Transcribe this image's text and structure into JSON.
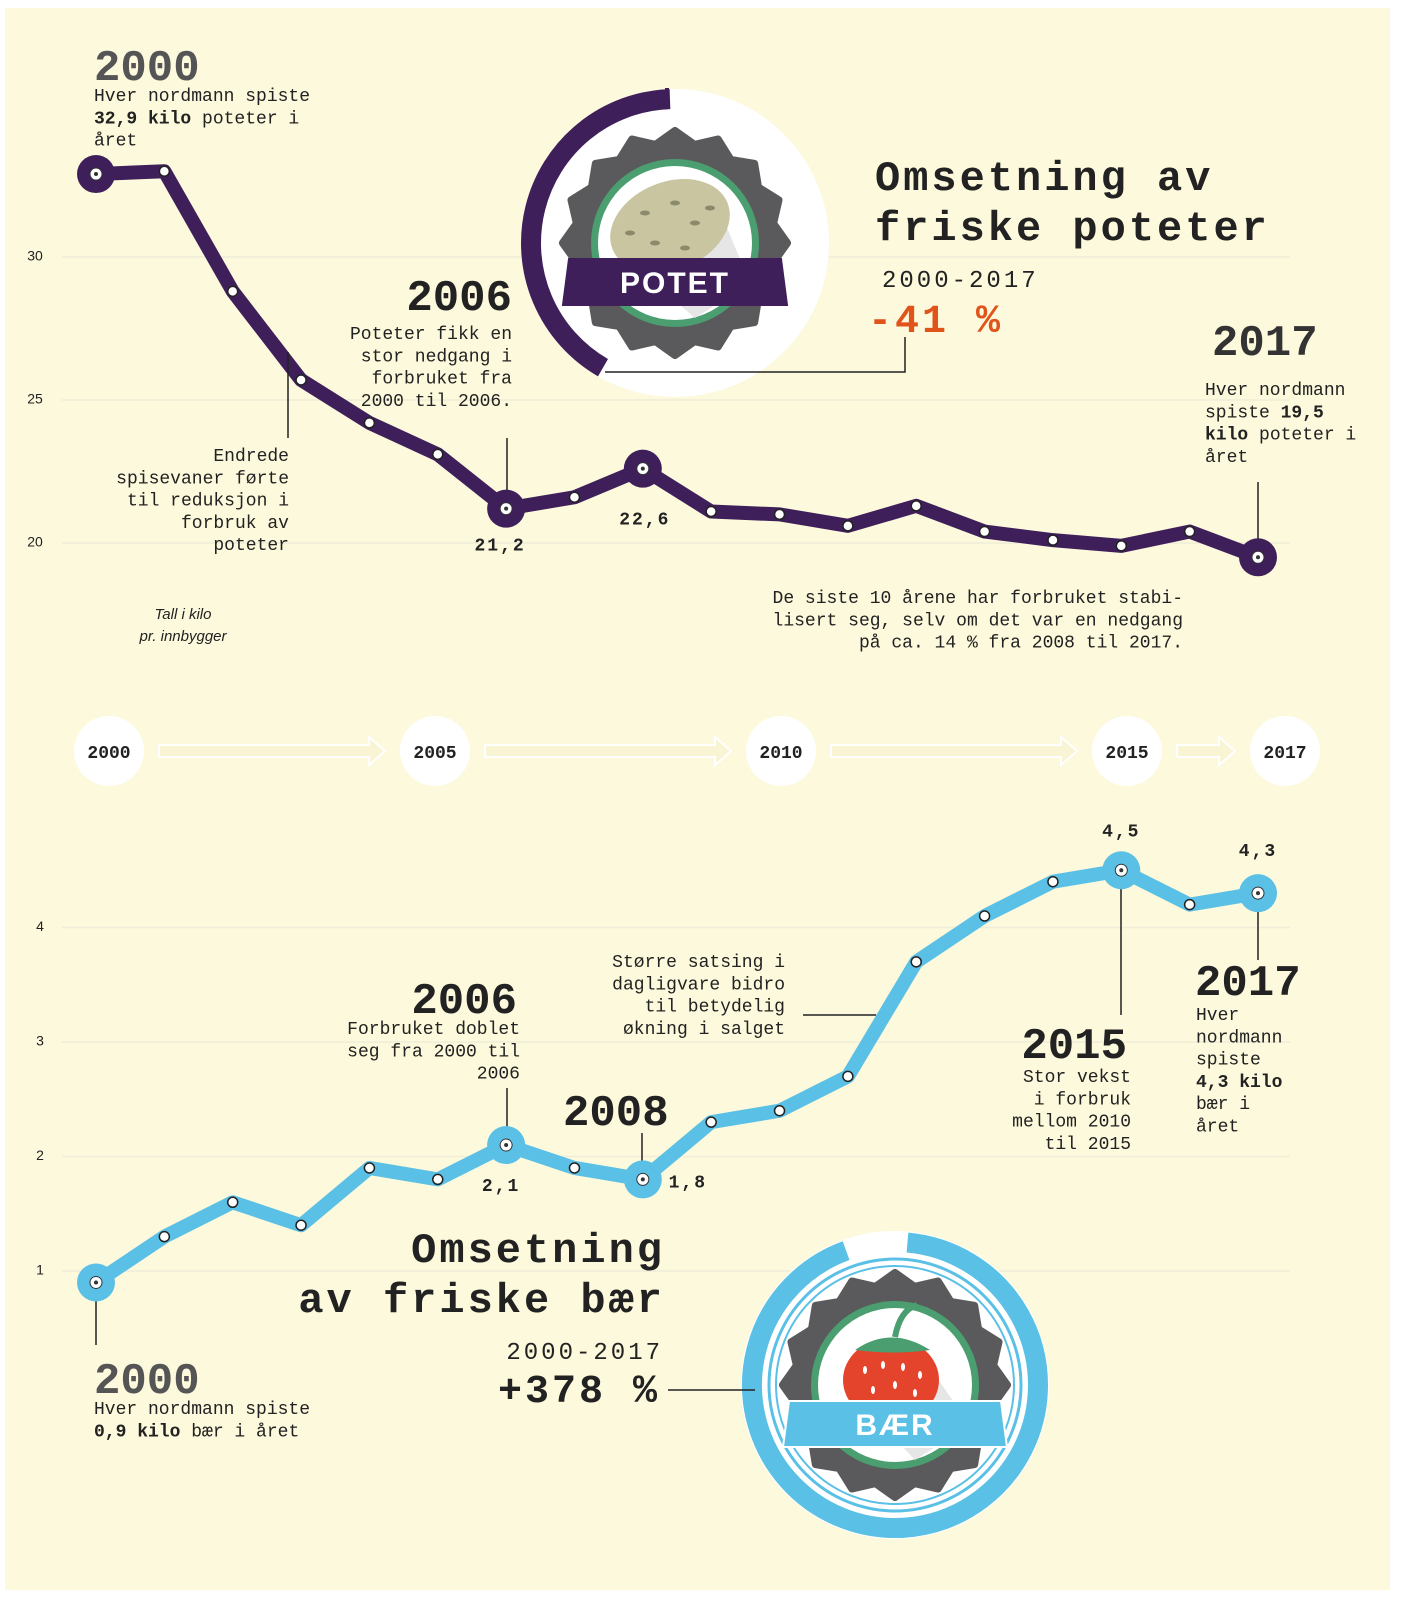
{
  "timeline": [
    2000,
    2005,
    2010,
    2015,
    2017
  ],
  "chart_data": [
    {
      "type": "line",
      "title": [
        "Omsetning av",
        "friske poteter"
      ],
      "period": "2000-2017",
      "change": "-41 %",
      "badge": "POTET",
      "unit_note": [
        "Tall i kilo",
        "pr. innbygger"
      ],
      "color": "#3f1f5a",
      "x": [
        2000,
        2001,
        2002,
        2003,
        2004,
        2005,
        2006,
        2007,
        2008,
        2009,
        2010,
        2011,
        2012,
        2013,
        2014,
        2015,
        2016,
        2017
      ],
      "values": [
        32.9,
        33.0,
        28.8,
        25.7,
        24.2,
        23.1,
        21.2,
        21.6,
        22.6,
        21.1,
        21.0,
        20.6,
        21.3,
        20.4,
        20.1,
        19.9,
        20.4,
        19.5
      ],
      "value_labels": [
        null,
        null,
        null,
        null,
        null,
        null,
        "21,2",
        null,
        "22,6",
        null,
        null,
        null,
        null,
        null,
        null,
        null,
        null,
        null
      ],
      "xlim": [
        2000,
        2017
      ],
      "ylim": [
        17,
        34
      ],
      "yticks": [
        20,
        25,
        30
      ],
      "grid": true,
      "annotations": [
        {
          "heading": "2000",
          "lines": [
            "Hver nordmann spiste",
            [
              {
                "b": "32,9 kilo"
              },
              " poteter i"
            ],
            "året"
          ]
        },
        {
          "heading": "2006",
          "lines": [
            "Poteter fikk en",
            "stor nedgang i",
            "forbruket fra",
            "2000 til 2006."
          ]
        },
        {
          "lines": [
            "Endrede",
            "spisevaner førte",
            "til reduksjon i",
            "forbruk av",
            "poteter"
          ]
        },
        {
          "heading": "2017",
          "lines": [
            "Hver nordmann",
            [
              "spiste ",
              {
                "b": "19,5"
              }
            ],
            [
              {
                "b": "kilo"
              },
              " poteter i"
            ],
            "året"
          ]
        },
        {
          "lines": [
            "De siste 10 årene har forbruket stabi-",
            "lisert seg, selv om det var en nedgang",
            "på ca. 14 % fra 2008 til 2017."
          ]
        }
      ]
    },
    {
      "type": "line",
      "title": [
        "Omsetning",
        "av friske bær"
      ],
      "period": "2000-2017",
      "change": "+378 %",
      "badge": "BÆR",
      "color": "#5bc0e6",
      "x": [
        2000,
        2001,
        2002,
        2003,
        2004,
        2005,
        2006,
        2007,
        2008,
        2009,
        2010,
        2011,
        2012,
        2013,
        2014,
        2015,
        2016,
        2017
      ],
      "values": [
        0.9,
        1.3,
        1.6,
        1.4,
        1.9,
        1.8,
        2.1,
        1.9,
        1.8,
        2.3,
        2.4,
        2.7,
        3.7,
        4.1,
        4.4,
        4.5,
        4.2,
        4.3
      ],
      "value_labels": [
        null,
        null,
        null,
        null,
        null,
        null,
        "2,1",
        null,
        "1,8",
        null,
        null,
        null,
        null,
        null,
        null,
        "4,5",
        null,
        "4,3"
      ],
      "xlim": [
        2000,
        2017
      ],
      "ylim": [
        0,
        5
      ],
      "yticks": [
        1,
        2,
        3,
        4
      ],
      "grid": true,
      "annotations": [
        {
          "heading": "2006",
          "lines": [
            "Forbruket doblet",
            "seg fra 2000 til",
            "2006"
          ]
        },
        {
          "heading": "2008",
          "lines": []
        },
        {
          "lines": [
            "Større satsing i",
            "dagligvare bidro",
            "til betydelig",
            "økning i salget"
          ]
        },
        {
          "heading": "2015",
          "lines": [
            "Stor vekst",
            "i forbruk",
            "mellom 2010",
            "til 2015"
          ]
        },
        {
          "heading": "2017",
          "lines": [
            "Hver",
            "nordmann",
            "spiste",
            [
              {
                "b": "4,3 kilo"
              }
            ],
            "bær i",
            "året"
          ]
        },
        {
          "heading": "2000",
          "lines": [
            "Hver nordmann spiste",
            [
              {
                "b": "0,9 kilo"
              },
              " bær i året"
            ]
          ]
        }
      ]
    }
  ]
}
